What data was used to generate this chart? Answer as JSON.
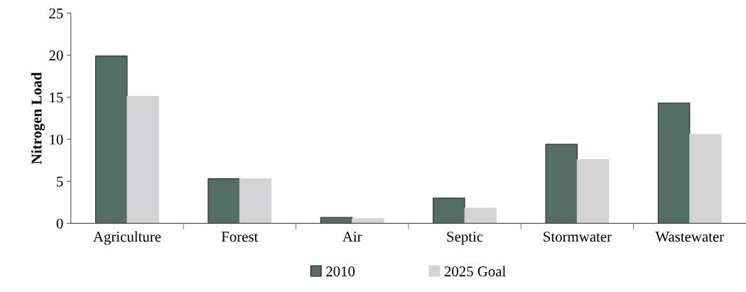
{
  "chart_data": {
    "type": "bar",
    "ylabel": "Nitrogen Load",
    "categories": [
      "Agriculture",
      "Forest",
      "Air",
      "Septic",
      "Stormwater",
      "Wastewater"
    ],
    "series": [
      {
        "name": "2010",
        "color": "#546e66",
        "values": [
          19.9,
          5.3,
          0.7,
          3.0,
          9.4,
          14.3
        ]
      },
      {
        "name": "2025 Goal",
        "color": "#d4d4d6",
        "values": [
          15.1,
          5.3,
          0.55,
          1.8,
          7.6,
          10.6
        ]
      }
    ],
    "ylim": [
      0,
      25
    ],
    "yticks": [
      0,
      5,
      10,
      15,
      20,
      25
    ],
    "grid": false,
    "legend": "bottom"
  }
}
